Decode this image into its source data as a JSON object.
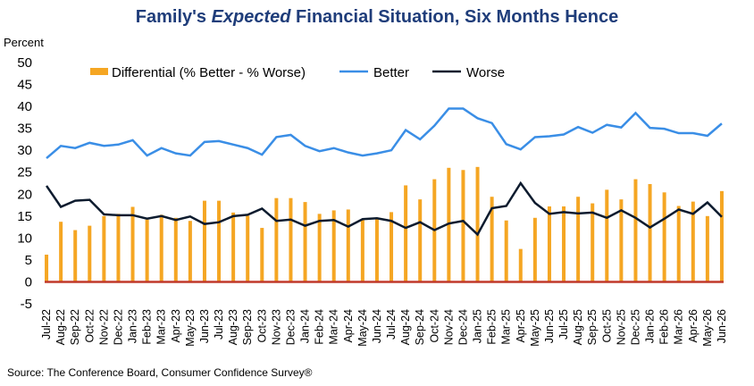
{
  "title": {
    "prefix": "Family's ",
    "emph": "Expected",
    "suffix": " Financial Situation, Six Months Hence"
  },
  "source": "Source: The Conference Board, Consumer Confidence Survey®",
  "colors": {
    "title": "#1f3d7a",
    "differential": "#f5a623",
    "better": "#3a8ee6",
    "worse": "#0d1b2e",
    "zero_line": "#c0392b"
  },
  "chart_data": {
    "type": "bar",
    "ylabel": "Percent",
    "ylim": [
      -5,
      50
    ],
    "yticks": [
      -5,
      0,
      5,
      10,
      15,
      20,
      25,
      30,
      35,
      40,
      45,
      50
    ],
    "legend_position": "top",
    "grid": false,
    "categories": [
      "Jul-22",
      "Aug-22",
      "Sep-22",
      "Oct-22",
      "Nov-22",
      "Dec-22",
      "Jan-23",
      "Feb-23",
      "Mar-23",
      "Apr-23",
      "May-23",
      "Jun-23",
      "Jul-23",
      "Aug-23",
      "Sep-23",
      "Oct-23",
      "Nov-23",
      "Dec-23",
      "Jan-24",
      "Feb-24",
      "Mar-24",
      "Apr-24",
      "May-24",
      "Jun-24",
      "Jul-24",
      "Aug-24",
      "Sep-24",
      "Oct-24",
      "Nov-24",
      "Dec-24",
      "Jan-25",
      "Feb-25",
      "Mar-25",
      "Apr-25",
      "May-25",
      "Jun-25",
      "Jul-25",
      "Aug-25",
      "Sep-25",
      "Oct-25",
      "Nov-25",
      "Dec-25",
      "Jan-26",
      "Feb-26",
      "Mar-26",
      "Apr-26",
      "May-26",
      "Jun-26"
    ],
    "series": [
      {
        "name": "Differential (% Better - % Worse)",
        "kind": "bar",
        "values": [
          6.2,
          13.7,
          11.8,
          12.8,
          15.0,
          15.5,
          17.1,
          14.2,
          15.3,
          14.6,
          13.9,
          18.5,
          18.5,
          15.8,
          15.1,
          12.3,
          19.1,
          19.1,
          18.2,
          15.5,
          16.3,
          16.5,
          14.2,
          14.5,
          15.9,
          22.0,
          18.8,
          23.4,
          26.0,
          25.5,
          26.2,
          19.4,
          14.0,
          7.5,
          14.6,
          17.2,
          17.2,
          19.4,
          17.9,
          21.0,
          18.8,
          23.4,
          22.3,
          20.4,
          17.3,
          18.3,
          15.0,
          20.7
        ]
      },
      {
        "name": "Better",
        "kind": "line",
        "values": [
          28.2,
          31.0,
          30.5,
          31.7,
          31.0,
          31.3,
          32.3,
          28.8,
          30.5,
          29.3,
          28.8,
          31.9,
          32.1,
          31.3,
          30.5,
          29.0,
          33.0,
          33.5,
          31.0,
          29.8,
          30.5,
          29.5,
          28.8,
          29.3,
          30.0,
          34.6,
          32.5,
          35.6,
          39.5,
          39.5,
          37.3,
          36.2,
          31.4,
          30.2,
          33.0,
          33.2,
          33.6,
          35.3,
          34.0,
          35.8,
          35.2,
          38.5,
          35.1,
          34.9,
          33.9,
          33.9,
          33.3,
          36.1
        ]
      },
      {
        "name": "Worse",
        "kind": "line",
        "values": [
          21.9,
          17.1,
          18.5,
          18.7,
          15.4,
          15.2,
          15.2,
          14.4,
          15.0,
          14.1,
          14.9,
          13.2,
          13.6,
          15.0,
          15.3,
          16.7,
          13.9,
          14.2,
          12.8,
          13.9,
          14.1,
          12.6,
          14.3,
          14.5,
          13.9,
          12.3,
          13.6,
          11.8,
          13.3,
          13.9,
          10.8,
          16.8,
          17.3,
          22.5,
          18.0,
          15.5,
          15.9,
          15.6,
          15.8,
          14.6,
          16.3,
          14.6,
          12.4,
          14.4,
          16.5,
          15.5,
          18.1,
          14.8
        ]
      }
    ]
  }
}
